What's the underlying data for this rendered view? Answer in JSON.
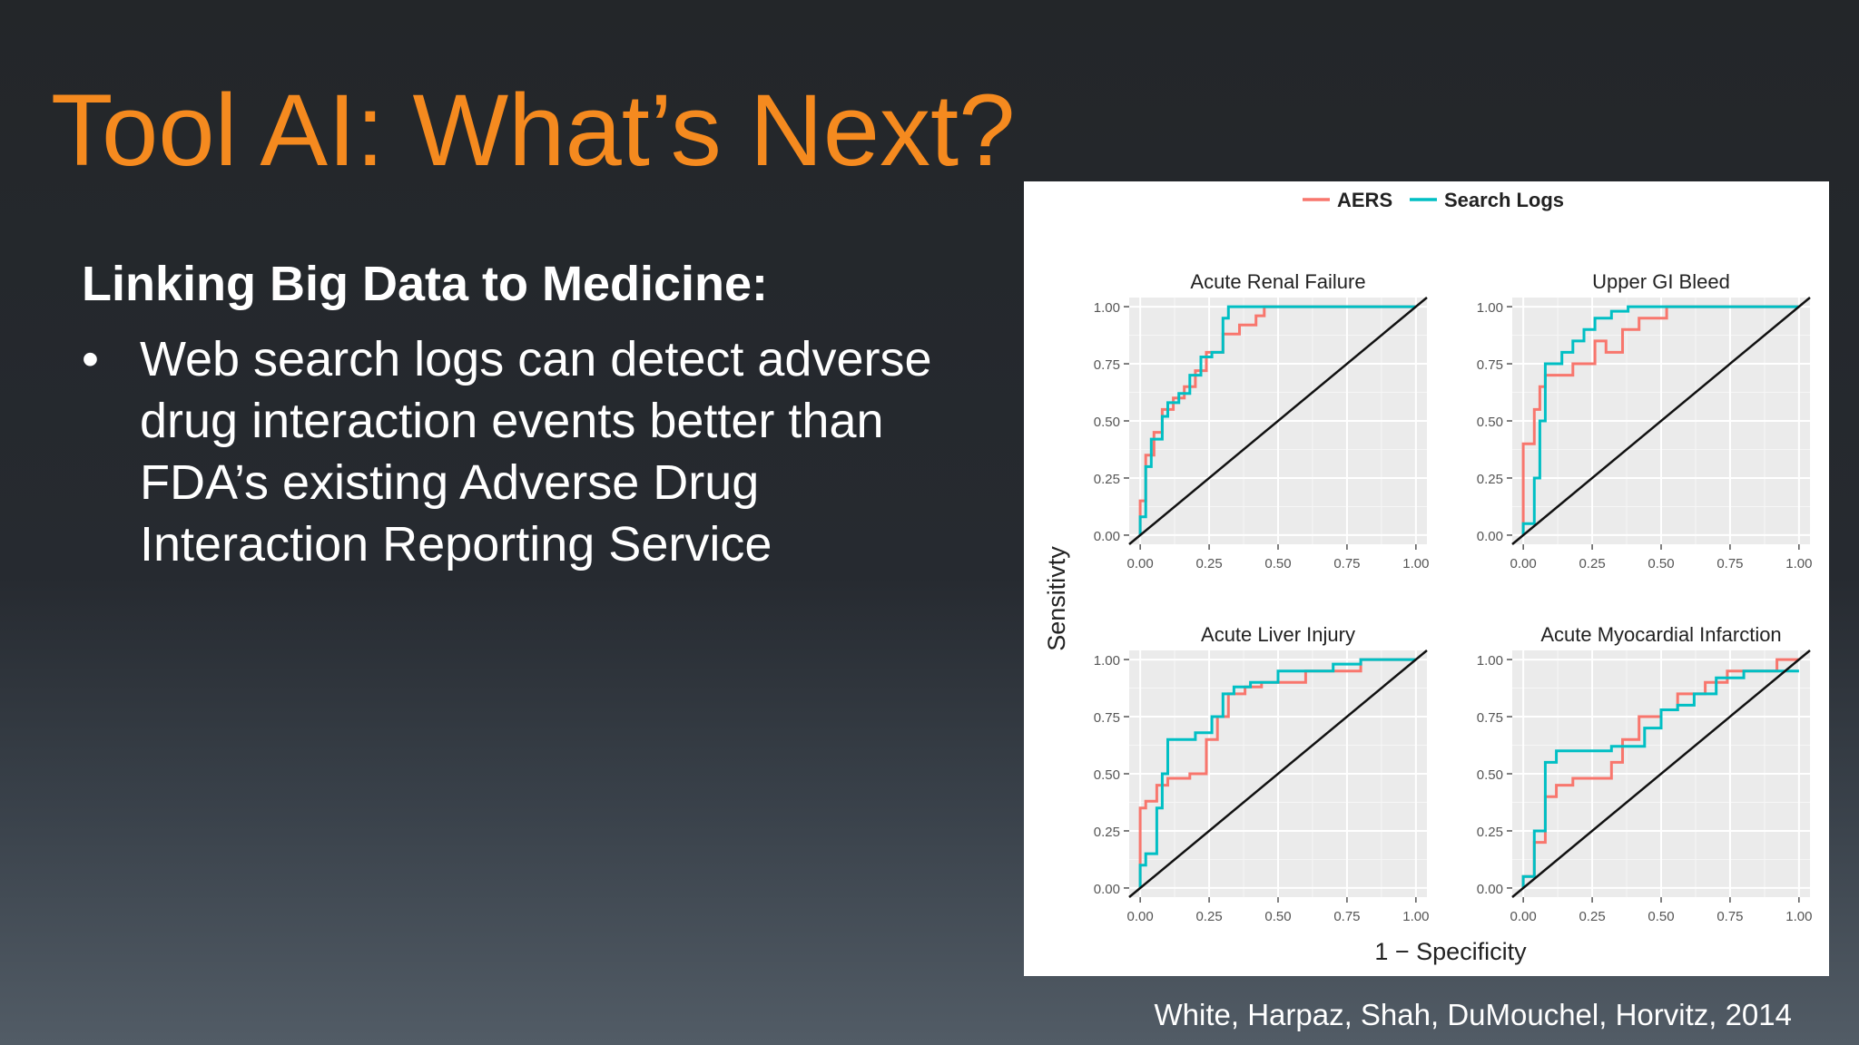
{
  "slide": {
    "title": "Tool AI: What’s Next?",
    "subheading": "Linking Big Data to Medicine:",
    "bullets": [
      "Web search logs can detect adverse drug interaction events better than FDA’s existing Adverse Drug Interaction Reporting Service"
    ],
    "citation": "White, Harpaz, Shah, DuMouchel, Horvitz, 2014"
  },
  "colors": {
    "title_orange": "#f58a1f",
    "aers_red": "#f8766d",
    "search_logs_teal": "#00bfc4",
    "panel_bg": "#ebebeb"
  },
  "chart_data": {
    "type": "line",
    "xlabel": "1 − Specificity",
    "ylabel": "Sensitivty",
    "xlim": [
      0,
      1
    ],
    "ylim": [
      0,
      1
    ],
    "ticks": [
      "0.00",
      "0.25",
      "0.50",
      "0.75",
      "1.00"
    ],
    "legend": {
      "position": "top-center",
      "entries": [
        "AERS",
        "Search Logs"
      ]
    },
    "grid": true,
    "reference_line": "diagonal",
    "panels": [
      {
        "title": "Acute Renal Failure",
        "series": [
          {
            "name": "AERS",
            "x": [
              0,
              0,
              0.02,
              0.02,
              0.05,
              0.05,
              0.08,
              0.08,
              0.12,
              0.12,
              0.16,
              0.16,
              0.2,
              0.2,
              0.24,
              0.24,
              0.3,
              0.3,
              0.36,
              0.36,
              0.42,
              0.42,
              0.45,
              0.45,
              1.0
            ],
            "y": [
              0,
              0.15,
              0.15,
              0.35,
              0.35,
              0.45,
              0.45,
              0.55,
              0.55,
              0.6,
              0.6,
              0.65,
              0.65,
              0.72,
              0.72,
              0.8,
              0.8,
              0.88,
              0.88,
              0.92,
              0.92,
              0.96,
              0.96,
              1.0,
              1.0
            ]
          },
          {
            "name": "Search Logs",
            "x": [
              0,
              0,
              0.02,
              0.02,
              0.04,
              0.04,
              0.08,
              0.08,
              0.1,
              0.1,
              0.14,
              0.14,
              0.18,
              0.18,
              0.22,
              0.22,
              0.26,
              0.26,
              0.3,
              0.3,
              0.32,
              0.32,
              1.0
            ],
            "y": [
              0,
              0.08,
              0.08,
              0.3,
              0.3,
              0.42,
              0.42,
              0.52,
              0.52,
              0.58,
              0.58,
              0.62,
              0.62,
              0.7,
              0.7,
              0.78,
              0.78,
              0.8,
              0.8,
              0.95,
              0.95,
              1.0,
              1.0
            ]
          }
        ]
      },
      {
        "title": "Upper GI Bleed",
        "series": [
          {
            "name": "AERS",
            "x": [
              0,
              0,
              0.04,
              0.04,
              0.06,
              0.06,
              0.08,
              0.08,
              0.18,
              0.18,
              0.26,
              0.26,
              0.3,
              0.3,
              0.36,
              0.36,
              0.42,
              0.42,
              0.52,
              0.52,
              1.0
            ],
            "y": [
              0,
              0.4,
              0.4,
              0.55,
              0.55,
              0.65,
              0.65,
              0.7,
              0.7,
              0.75,
              0.75,
              0.85,
              0.85,
              0.8,
              0.8,
              0.9,
              0.9,
              0.95,
              0.95,
              1.0,
              1.0
            ]
          },
          {
            "name": "Search Logs",
            "x": [
              0,
              0,
              0.04,
              0.04,
              0.06,
              0.06,
              0.08,
              0.08,
              0.14,
              0.14,
              0.18,
              0.18,
              0.22,
              0.22,
              0.26,
              0.26,
              0.32,
              0.32,
              0.38,
              0.38,
              1.0
            ],
            "y": [
              0,
              0.05,
              0.05,
              0.25,
              0.25,
              0.5,
              0.5,
              0.75,
              0.75,
              0.8,
              0.8,
              0.85,
              0.85,
              0.9,
              0.9,
              0.95,
              0.95,
              0.98,
              0.98,
              1.0,
              1.0
            ]
          }
        ]
      },
      {
        "title": "Acute Liver Injury",
        "series": [
          {
            "name": "AERS",
            "x": [
              0,
              0,
              0.02,
              0.02,
              0.06,
              0.06,
              0.1,
              0.1,
              0.18,
              0.18,
              0.24,
              0.24,
              0.28,
              0.28,
              0.32,
              0.32,
              0.38,
              0.38,
              0.44,
              0.44,
              0.6,
              0.6,
              0.8,
              0.8,
              1.0
            ],
            "y": [
              0,
              0.35,
              0.35,
              0.38,
              0.38,
              0.45,
              0.45,
              0.48,
              0.48,
              0.5,
              0.5,
              0.65,
              0.65,
              0.75,
              0.75,
              0.85,
              0.85,
              0.88,
              0.88,
              0.9,
              0.9,
              0.95,
              0.95,
              1.0,
              1.0
            ]
          },
          {
            "name": "Search Logs",
            "x": [
              0,
              0,
              0.02,
              0.02,
              0.06,
              0.06,
              0.08,
              0.08,
              0.1,
              0.1,
              0.2,
              0.2,
              0.26,
              0.26,
              0.3,
              0.3,
              0.34,
              0.34,
              0.4,
              0.4,
              0.5,
              0.5,
              0.7,
              0.7,
              0.8,
              0.8,
              1.0
            ],
            "y": [
              0,
              0.1,
              0.1,
              0.15,
              0.15,
              0.35,
              0.35,
              0.5,
              0.5,
              0.65,
              0.65,
              0.68,
              0.68,
              0.75,
              0.75,
              0.85,
              0.85,
              0.88,
              0.88,
              0.9,
              0.9,
              0.95,
              0.95,
              0.98,
              0.98,
              1.0,
              1.0
            ]
          }
        ]
      },
      {
        "title": "Acute Myocardial Infarction",
        "series": [
          {
            "name": "AERS",
            "x": [
              0,
              0,
              0.04,
              0.04,
              0.08,
              0.08,
              0.12,
              0.12,
              0.18,
              0.18,
              0.32,
              0.32,
              0.36,
              0.36,
              0.42,
              0.42,
              0.5,
              0.5,
              0.56,
              0.56,
              0.66,
              0.66,
              0.74,
              0.74,
              0.92,
              0.92,
              1.0
            ],
            "y": [
              0,
              0.05,
              0.05,
              0.2,
              0.2,
              0.4,
              0.4,
              0.45,
              0.45,
              0.48,
              0.48,
              0.55,
              0.55,
              0.65,
              0.65,
              0.75,
              0.75,
              0.78,
              0.78,
              0.85,
              0.85,
              0.9,
              0.9,
              0.95,
              0.95,
              1.0,
              1.0
            ]
          },
          {
            "name": "Search Logs",
            "x": [
              0,
              0,
              0.04,
              0.04,
              0.08,
              0.08,
              0.12,
              0.12,
              0.32,
              0.32,
              0.44,
              0.44,
              0.5,
              0.5,
              0.56,
              0.56,
              0.62,
              0.62,
              0.7,
              0.7,
              0.8,
              0.8,
              1.0
            ],
            "y": [
              0,
              0.05,
              0.05,
              0.25,
              0.25,
              0.55,
              0.55,
              0.6,
              0.6,
              0.62,
              0.62,
              0.7,
              0.7,
              0.78,
              0.78,
              0.8,
              0.8,
              0.85,
              0.85,
              0.92,
              0.92,
              0.95,
              0.95
            ]
          }
        ]
      }
    ]
  }
}
